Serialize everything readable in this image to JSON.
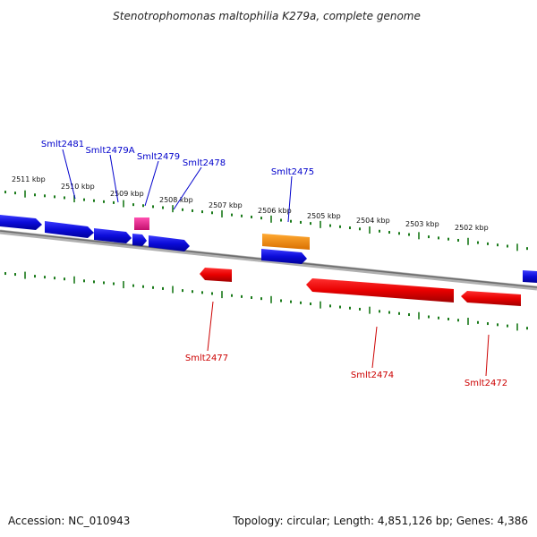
{
  "title": "Stenotrophomonas maltophilia K279a, complete genome",
  "footer": {
    "accession": "Accession: NC_010943",
    "summary": "Topology: circular; Length: 4,851,126 bp; Genes: 4,386"
  },
  "colors": {
    "forward_cds": "#0b0bd9",
    "reverse_cds": "#e80000",
    "rna": "#e8208c",
    "misc": "#ff8c00",
    "ticks": "#1a7a1a",
    "backbone": "#8a8a8a",
    "label_forward": "#0000cc",
    "label_reverse": "#cc0000"
  },
  "kbp_labels": [
    "2511 kbp",
    "2510 kbp",
    "2509 kbp",
    "2508 kbp",
    "2507 kbp",
    "2506 kbp",
    "2505 kbp",
    "2504 kbp",
    "2503 kbp",
    "2502 kbp"
  ],
  "forward_labels": [
    "Smlt2481",
    "Smlt2479A",
    "Smlt2479",
    "Smlt2478",
    "Smlt2475"
  ],
  "reverse_labels": [
    "Smlt2477",
    "Smlt2474",
    "Smlt2472"
  ]
}
